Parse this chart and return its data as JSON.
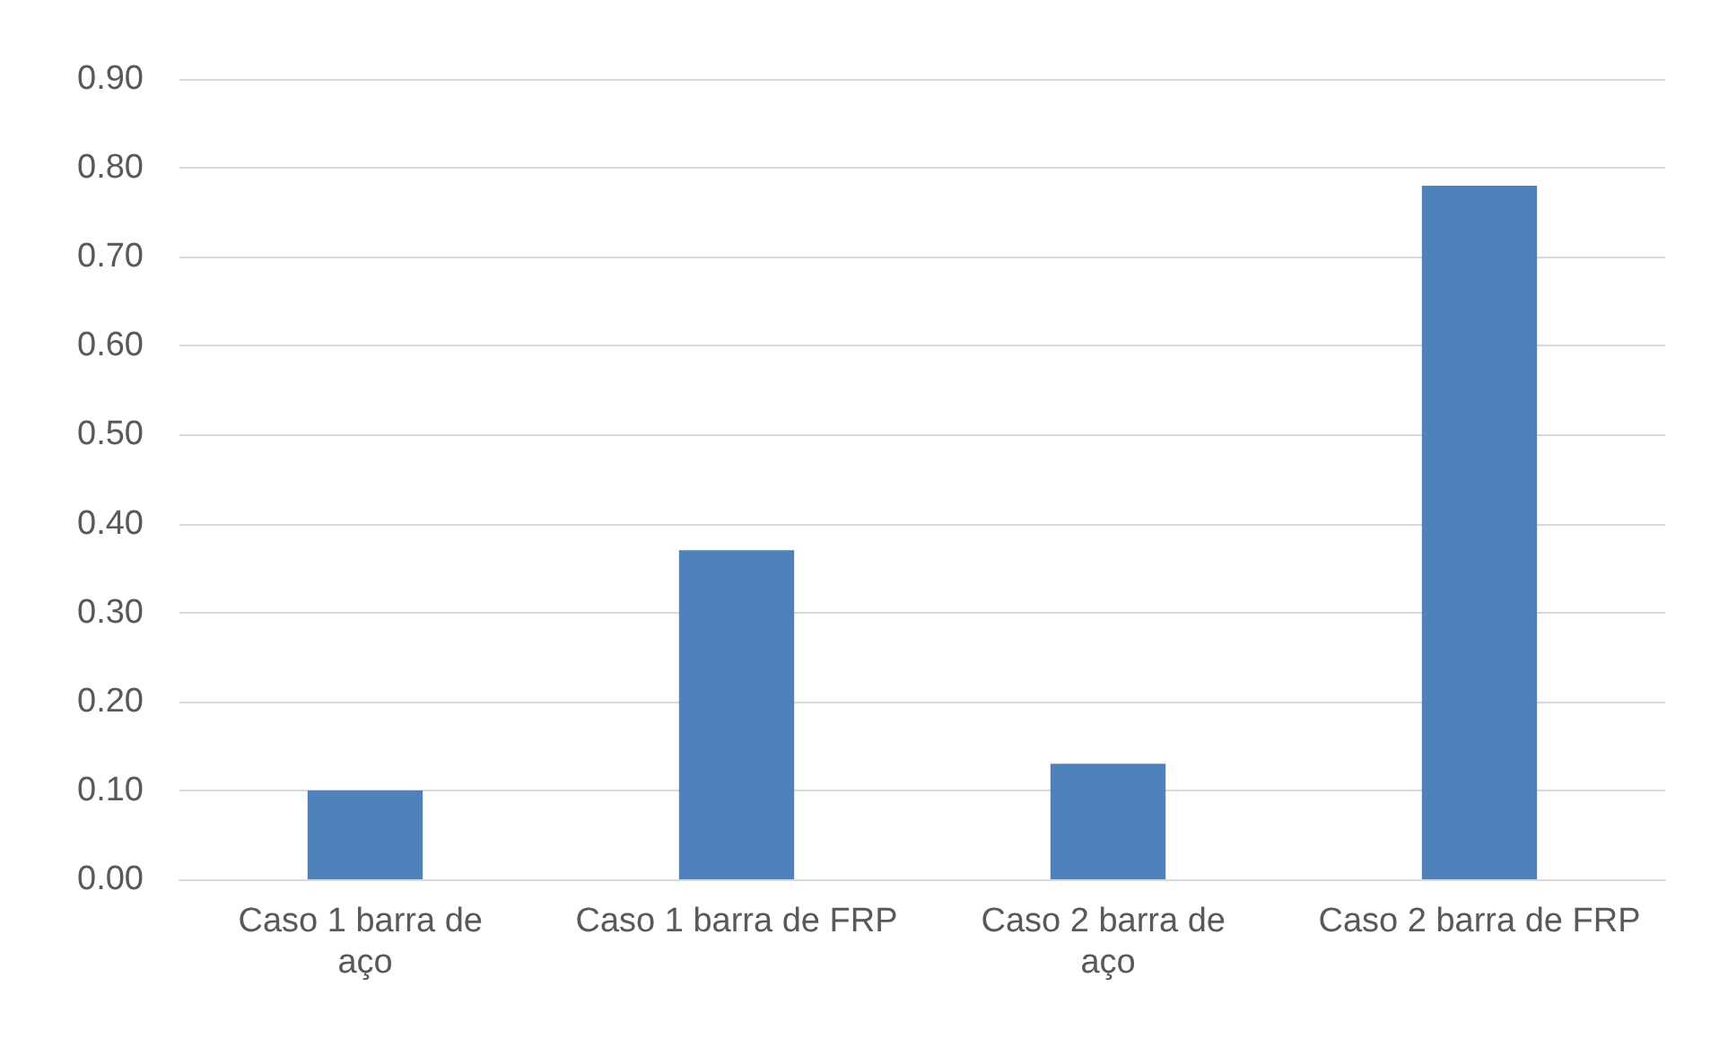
{
  "chart_data": {
    "type": "bar",
    "categories": [
      "Caso 1 barra de aço",
      "Caso 1 barra de FRP",
      "Caso 2 barra de aço",
      "Caso 2 barra de FRP"
    ],
    "values": [
      0.1,
      0.37,
      0.13,
      0.78
    ],
    "color": "#4f81bd",
    "ylim": [
      0,
      0.9
    ],
    "yticks": [
      {
        "value": 0,
        "label": "0.00"
      },
      {
        "value": 0.1,
        "label": "0.10"
      },
      {
        "value": 0.2,
        "label": "0.20"
      },
      {
        "value": 0.3,
        "label": "0.30"
      },
      {
        "value": 0.4,
        "label": "0.40"
      },
      {
        "value": 0.5,
        "label": "0.50"
      },
      {
        "value": 0.6,
        "label": "0.60"
      },
      {
        "value": 0.7,
        "label": "0.70"
      },
      {
        "value": 0.8,
        "label": "0.80"
      },
      {
        "value": 0.9,
        "label": "0.90"
      }
    ],
    "grid": true
  }
}
